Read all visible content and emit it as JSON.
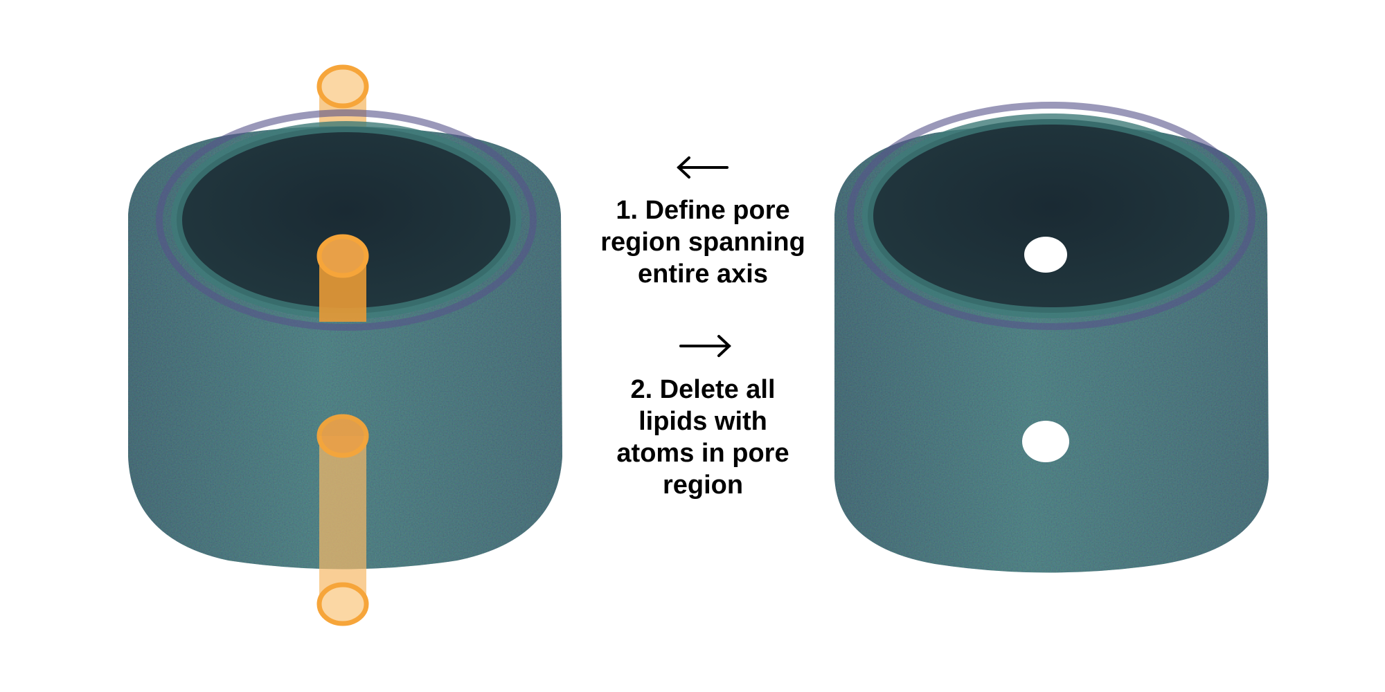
{
  "steps": [
    {
      "number": "1.",
      "text": "1. Define pore\nregion spanning\nentire axis",
      "arrow_direction": "left"
    },
    {
      "number": "2.",
      "text": "2. Delete all\nlipids with\natoms in pore\nregion",
      "arrow_direction": "right"
    }
  ],
  "colors": {
    "lipid_teal": "#2e8f88",
    "lipid_purple": "#5e5b87",
    "lipid_dark": "#1b2a32",
    "pore_region": "#f6a53a",
    "background": "#ffffff",
    "text": "#000000"
  },
  "panels": [
    {
      "name": "left-cylinder-with-pore-regions",
      "pore_cylinders": 2
    },
    {
      "name": "right-cylinder-with-holes",
      "holes": 2
    }
  ]
}
